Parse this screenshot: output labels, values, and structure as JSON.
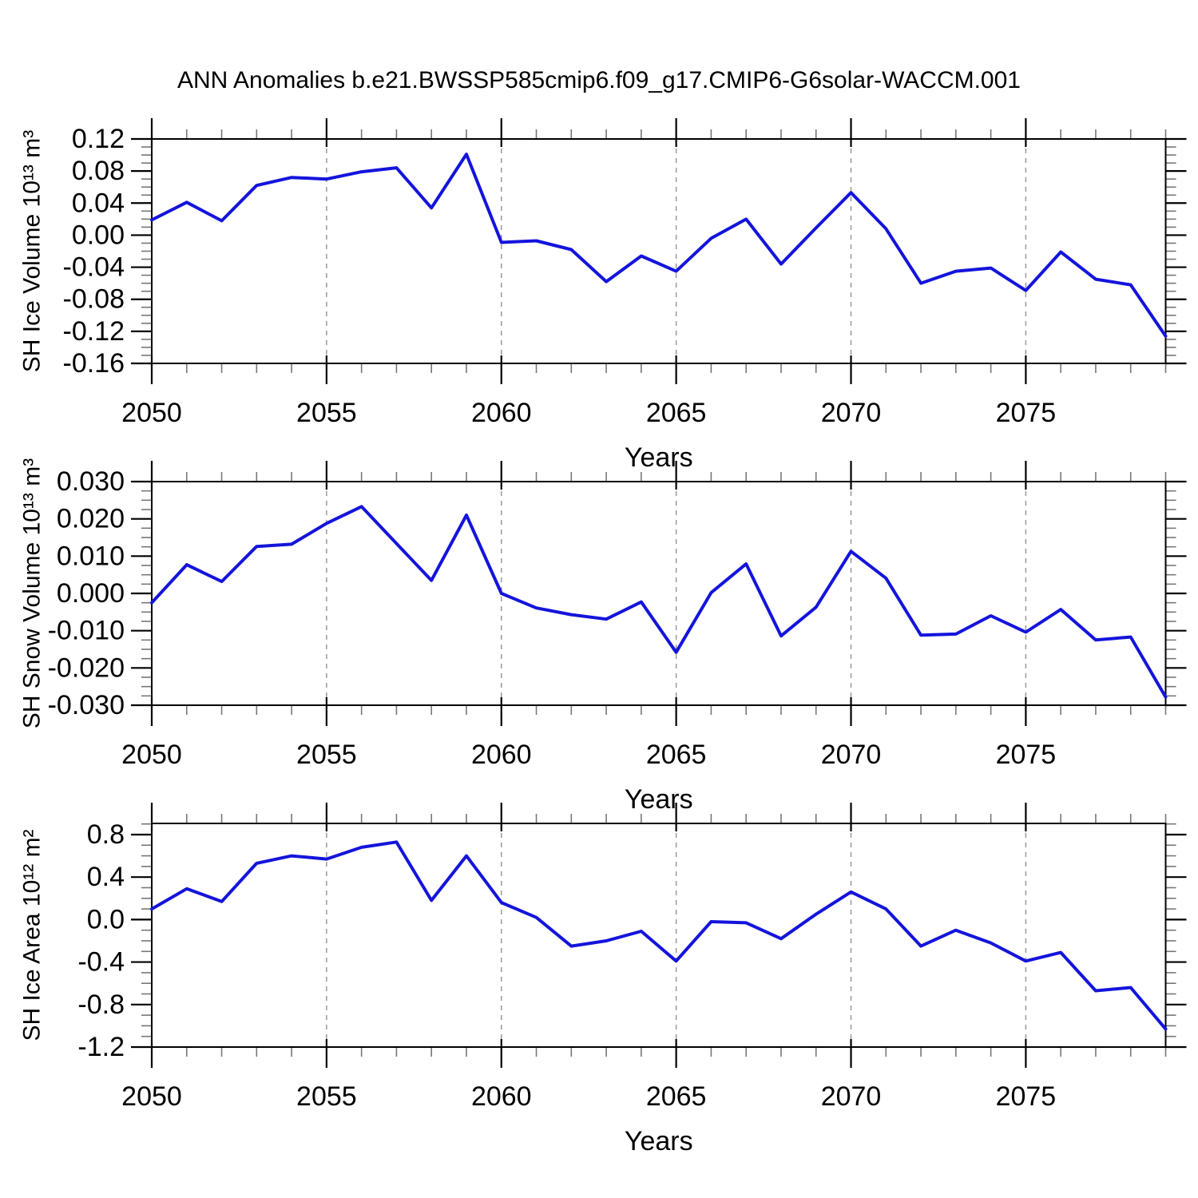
{
  "title": "ANN Anomalies b.e21.BWSSP585cmip6.f09_g17.CMIP6-G6solar-WACCM.001",
  "colors": {
    "line": "#1414dc",
    "grid": "#999999",
    "axis": "#000000",
    "minor_tick": "#777777",
    "text": "#000000"
  },
  "chart_data": [
    {
      "type": "line",
      "ylabel": "SH Ice Volume 10¹³ m³",
      "xlabel": "Years",
      "x": [
        2050,
        2051,
        2052,
        2053,
        2054,
        2055,
        2056,
        2057,
        2058,
        2059,
        2060,
        2061,
        2062,
        2063,
        2064,
        2065,
        2066,
        2067,
        2068,
        2069,
        2070,
        2071,
        2072,
        2073,
        2074,
        2075,
        2076,
        2077,
        2078,
        2079
      ],
      "values": [
        0.019,
        0.041,
        0.018,
        0.062,
        0.072,
        0.07,
        0.079,
        0.084,
        0.034,
        0.101,
        -0.009,
        -0.007,
        -0.018,
        -0.058,
        -0.026,
        -0.045,
        -0.004,
        0.02,
        -0.036,
        0.009,
        0.053,
        0.008,
        -0.06,
        -0.045,
        -0.041,
        -0.069,
        -0.021,
        -0.055,
        -0.062,
        -0.126
      ],
      "xlim": [
        2050,
        2079
      ],
      "ylim": [
        -0.16,
        0.12
      ],
      "yticks": [
        0.12,
        0.08,
        0.04,
        0.0,
        -0.04,
        -0.08,
        -0.12,
        -0.16
      ],
      "ytick_decimals": 2,
      "ytick_minor_step": 0.01,
      "xticks": [
        2050,
        2055,
        2060,
        2065,
        2070,
        2075
      ],
      "grid_x": [
        2055,
        2060,
        2065,
        2070,
        2075
      ],
      "grid": "vertical-dashed",
      "legend": "none"
    },
    {
      "type": "line",
      "ylabel": "SH Snow Volume 10¹³ m³",
      "xlabel": "Years",
      "x": [
        2050,
        2051,
        2052,
        2053,
        2054,
        2055,
        2056,
        2057,
        2058,
        2059,
        2060,
        2061,
        2062,
        2063,
        2064,
        2065,
        2066,
        2067,
        2068,
        2069,
        2070,
        2071,
        2072,
        2073,
        2074,
        2075,
        2076,
        2077,
        2078,
        2079
      ],
      "values": [
        -0.0025,
        0.0077,
        0.0032,
        0.0126,
        0.0132,
        0.0188,
        0.0233,
        0.0134,
        0.0035,
        0.021,
        0.0,
        -0.0039,
        -0.0057,
        -0.0069,
        -0.0023,
        -0.0158,
        0.0002,
        0.0079,
        -0.0114,
        -0.0037,
        0.0113,
        0.0041,
        -0.0112,
        -0.0109,
        -0.006,
        -0.0104,
        -0.0043,
        -0.0125,
        -0.0117,
        -0.0278
      ],
      "xlim": [
        2050,
        2079
      ],
      "ylim": [
        -0.03,
        0.03
      ],
      "yticks": [
        0.03,
        0.02,
        0.01,
        0.0,
        -0.01,
        -0.02,
        -0.03
      ],
      "ytick_decimals": 3,
      "ytick_minor_step": 0.0025,
      "xticks": [
        2050,
        2055,
        2060,
        2065,
        2070,
        2075
      ],
      "grid_x": [
        2055,
        2060,
        2065,
        2070,
        2075
      ],
      "grid": "vertical-dashed",
      "legend": "none"
    },
    {
      "type": "line",
      "ylabel": "SH Ice Area 10¹² m²",
      "xlabel": "Years",
      "x": [
        2050,
        2051,
        2052,
        2053,
        2054,
        2055,
        2056,
        2057,
        2058,
        2059,
        2060,
        2061,
        2062,
        2063,
        2064,
        2065,
        2066,
        2067,
        2068,
        2069,
        2070,
        2071,
        2072,
        2073,
        2074,
        2075,
        2076,
        2077,
        2078,
        2079
      ],
      "values": [
        0.1,
        0.29,
        0.17,
        0.53,
        0.6,
        0.57,
        0.68,
        0.73,
        0.18,
        0.6,
        0.16,
        0.02,
        -0.25,
        -0.2,
        -0.11,
        -0.39,
        -0.02,
        -0.03,
        -0.18,
        0.05,
        0.26,
        0.1,
        -0.25,
        -0.1,
        -0.22,
        -0.39,
        -0.31,
        -0.67,
        -0.64,
        -1.03
      ],
      "xlim": [
        2050,
        2079
      ],
      "ylim": [
        -1.2,
        0.905
      ],
      "yticks": [
        0.8,
        0.4,
        0.0,
        -0.4,
        -0.8,
        -1.2
      ],
      "ytick_decimals": 1,
      "ytick_minor_step": 0.1,
      "xticks": [
        2050,
        2055,
        2060,
        2065,
        2070,
        2075
      ],
      "grid_x": [
        2055,
        2060,
        2065,
        2070,
        2075
      ],
      "grid": "vertical-dashed",
      "legend": "none"
    }
  ]
}
